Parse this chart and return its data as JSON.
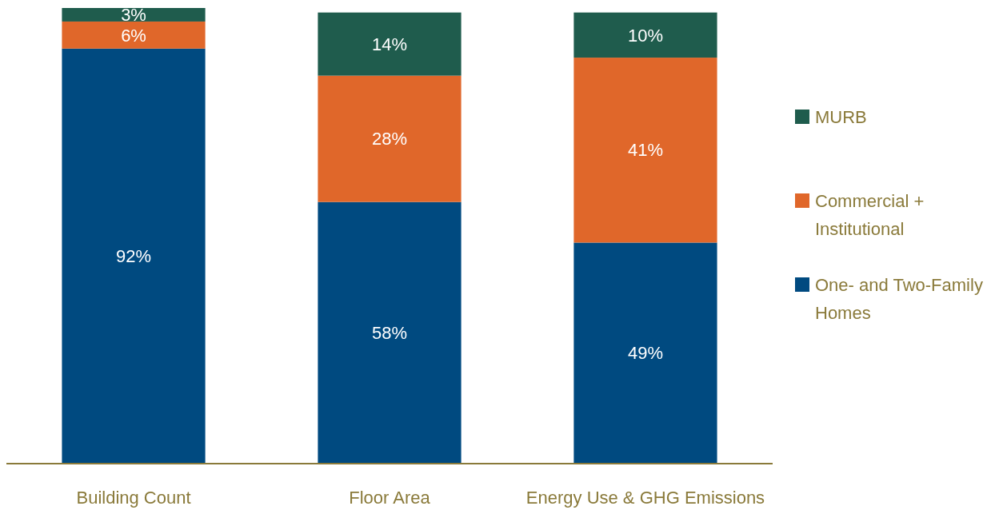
{
  "chart_data": {
    "type": "bar",
    "stacked": true,
    "categories": [
      "Building Count",
      "Floor Area",
      "Energy Use & GHG Emissions"
    ],
    "series": [
      {
        "name": "One- and Two-Family Homes",
        "color": "#004a80",
        "values": [
          92,
          58,
          49
        ],
        "value_labels": [
          "92%",
          "58%",
          "49%"
        ]
      },
      {
        "name": "Commercial + Institutional",
        "color": "#e0672a",
        "values": [
          6,
          28,
          41
        ],
        "value_labels": [
          "6%",
          "28%",
          "41%"
        ]
      },
      {
        "name": "MURB",
        "color": "#1f5c4d",
        "values": [
          3,
          14,
          10
        ],
        "value_labels": [
          "3%",
          "14%",
          "10%"
        ]
      }
    ],
    "legend": "right"
  }
}
